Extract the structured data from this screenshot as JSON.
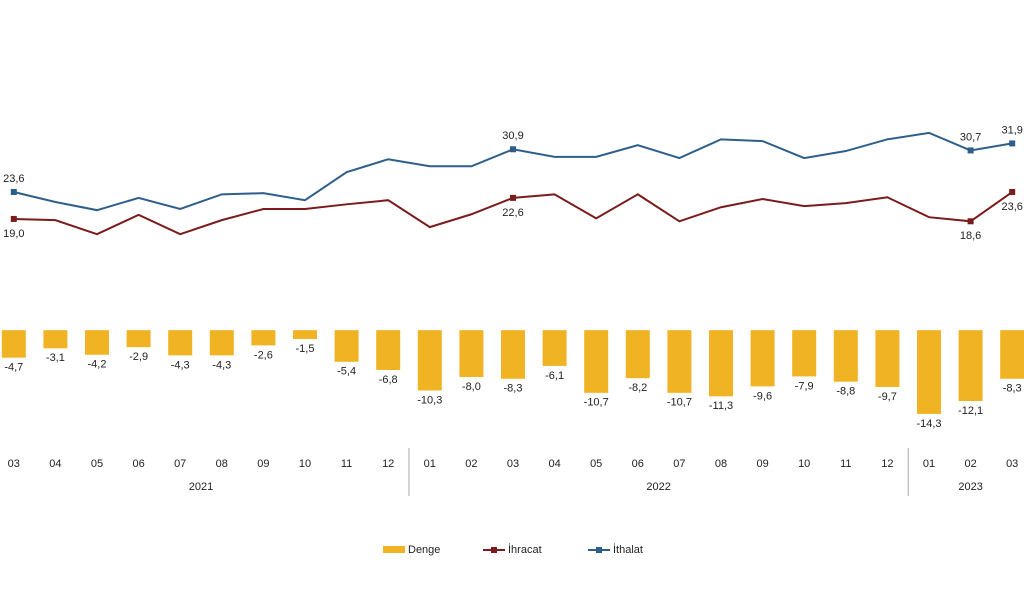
{
  "chart_data": {
    "type": "bar-line",
    "categories": [
      "03",
      "04",
      "05",
      "06",
      "07",
      "08",
      "09",
      "10",
      "11",
      "12",
      "01",
      "02",
      "03",
      "04",
      "05",
      "06",
      "07",
      "08",
      "09",
      "10",
      "11",
      "12",
      "01",
      "02",
      "03"
    ],
    "groups": [
      {
        "label": "2021",
        "size": 10
      },
      {
        "label": "2022",
        "size": 12
      },
      {
        "label": "2023",
        "size": 3
      }
    ],
    "ylim": [
      -15,
      40
    ],
    "series": [
      {
        "name": "Denge",
        "type": "bar",
        "color": "#f0b323",
        "values": [
          -4.7,
          -3.1,
          -4.2,
          -2.9,
          -4.3,
          -4.3,
          -2.6,
          -1.5,
          -5.4,
          -6.8,
          -10.3,
          -8.0,
          -8.3,
          -6.1,
          -10.7,
          -8.2,
          -10.7,
          -11.3,
          -9.6,
          -7.9,
          -8.8,
          -9.7,
          -14.3,
          -12.1,
          -8.3
        ],
        "value_labels": [
          "-4,7",
          "-3,1",
          "-4,2",
          "-2,9",
          "-4,3",
          "-4,3",
          "-2,6",
          "-1,5",
          "-5,4",
          "-6,8",
          "-10,3",
          "-8,0",
          "-8,3",
          "-6,1",
          "-10,7",
          "-8,2",
          "-10,7",
          "-11,3",
          "-9,6",
          "-7,9",
          "-8,8",
          "-9,7",
          "-14,3",
          "-12,1",
          "-8,3"
        ]
      },
      {
        "name": "İhracat",
        "type": "line",
        "color": "#7b1c1c",
        "values": [
          19.0,
          18.8,
          16.4,
          19.7,
          16.4,
          18.8,
          20.7,
          20.7,
          21.5,
          22.2,
          17.6,
          19.8,
          22.6,
          23.2,
          19.1,
          23.2,
          18.6,
          21.0,
          22.4,
          21.2,
          21.7,
          22.7,
          19.3,
          18.6,
          23.6
        ],
        "value_labels": [
          "19,0",
          null,
          null,
          null,
          null,
          null,
          null,
          null,
          null,
          null,
          null,
          null,
          "22,6",
          null,
          null,
          null,
          null,
          null,
          null,
          null,
          null,
          null,
          null,
          "18,6",
          "23,6"
        ]
      },
      {
        "name": "İthalat",
        "type": "line",
        "color": "#2e5f8a",
        "values": [
          23.6,
          21.9,
          20.5,
          22.6,
          20.7,
          23.2,
          23.4,
          22.2,
          27.0,
          29.2,
          28.0,
          28.0,
          30.9,
          29.6,
          29.6,
          31.6,
          29.4,
          32.6,
          32.3,
          29.4,
          30.6,
          32.6,
          33.7,
          30.7,
          31.9
        ],
        "value_labels": [
          "23,6",
          null,
          null,
          null,
          null,
          null,
          null,
          null,
          null,
          null,
          null,
          null,
          "30,9",
          null,
          null,
          null,
          null,
          null,
          null,
          null,
          null,
          null,
          null,
          "30,7",
          "31,9"
        ]
      }
    ]
  }
}
